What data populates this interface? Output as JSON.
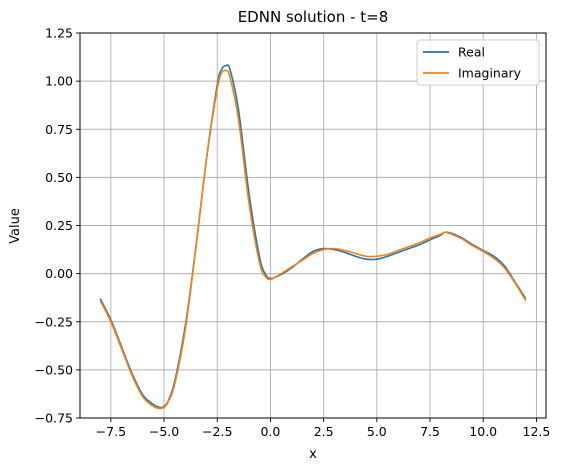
{
  "chart_data": {
    "type": "line",
    "title": "EDNN solution - t=8",
    "xlabel": "x",
    "ylabel": "Value",
    "xlim": [
      -8.95,
      12.95
    ],
    "ylim": [
      -0.75,
      1.25
    ],
    "xticks": [
      -7.5,
      -5.0,
      -2.5,
      0.0,
      2.5,
      5.0,
      7.5,
      10.0,
      12.5
    ],
    "xtick_labels": [
      "−7.5",
      "−5.0",
      "−2.5",
      "0.0",
      "2.5",
      "5.0",
      "7.5",
      "10.0",
      "12.5"
    ],
    "yticks": [
      -0.75,
      -0.5,
      -0.25,
      0.0,
      0.25,
      0.5,
      0.75,
      1.0,
      1.25
    ],
    "ytick_labels": [
      "−0.75",
      "−0.50",
      "−0.25",
      "0.00",
      "0.25",
      "0.50",
      "0.75",
      "1.00",
      "1.25"
    ],
    "grid": true,
    "legend_position": "top-right",
    "series": [
      {
        "name": "Real",
        "color": "#1f77b4",
        "x": [
          -8.0,
          -7.5,
          -7.0,
          -6.5,
          -6.0,
          -5.5,
          -5.2,
          -5.0,
          -4.8,
          -4.5,
          -4.0,
          -3.5,
          -3.0,
          -2.5,
          -2.3,
          -2.1,
          -1.9,
          -1.5,
          -1.0,
          -0.5,
          -0.2,
          0.0,
          0.2,
          0.5,
          1.0,
          1.5,
          2.0,
          2.5,
          3.0,
          3.5,
          4.0,
          4.5,
          5.0,
          5.5,
          6.0,
          6.5,
          7.0,
          7.5,
          8.0,
          8.2,
          8.5,
          9.0,
          9.5,
          10.0,
          10.5,
          11.0,
          11.5,
          12.0
        ],
        "y": [
          -0.13,
          -0.24,
          -0.38,
          -0.52,
          -0.63,
          -0.68,
          -0.695,
          -0.69,
          -0.66,
          -0.56,
          -0.27,
          0.14,
          0.6,
          0.98,
          1.06,
          1.08,
          1.06,
          0.85,
          0.41,
          0.08,
          -0.01,
          -0.025,
          -0.02,
          -0.005,
          0.03,
          0.075,
          0.115,
          0.13,
          0.125,
          0.11,
          0.09,
          0.075,
          0.075,
          0.09,
          0.11,
          0.13,
          0.15,
          0.175,
          0.2,
          0.215,
          0.21,
          0.185,
          0.15,
          0.12,
          0.09,
          0.04,
          -0.045,
          -0.13
        ]
      },
      {
        "name": "Imaginary",
        "color": "#ff7f0e",
        "x": [
          -8.0,
          -7.5,
          -7.0,
          -6.5,
          -6.0,
          -5.5,
          -5.2,
          -5.0,
          -4.8,
          -4.5,
          -4.0,
          -3.5,
          -3.0,
          -2.5,
          -2.3,
          -2.1,
          -1.9,
          -1.5,
          -1.0,
          -0.5,
          -0.2,
          0.0,
          0.2,
          0.5,
          1.0,
          1.5,
          2.0,
          2.5,
          3.0,
          3.5,
          4.0,
          4.5,
          5.0,
          5.5,
          6.0,
          6.5,
          7.0,
          7.5,
          8.0,
          8.2,
          8.5,
          9.0,
          9.5,
          10.0,
          10.5,
          11.0,
          11.5,
          12.0
        ],
        "y": [
          -0.14,
          -0.25,
          -0.39,
          -0.53,
          -0.64,
          -0.69,
          -0.7,
          -0.695,
          -0.665,
          -0.575,
          -0.29,
          0.14,
          0.6,
          0.96,
          1.04,
          1.055,
          1.02,
          0.8,
          0.36,
          0.05,
          -0.02,
          -0.03,
          -0.02,
          0.0,
          0.035,
          0.07,
          0.105,
          0.125,
          0.13,
          0.12,
          0.105,
          0.09,
          0.09,
          0.1,
          0.12,
          0.14,
          0.16,
          0.185,
          0.205,
          0.215,
          0.205,
          0.18,
          0.145,
          0.115,
          0.08,
          0.03,
          -0.05,
          -0.14
        ]
      }
    ]
  }
}
